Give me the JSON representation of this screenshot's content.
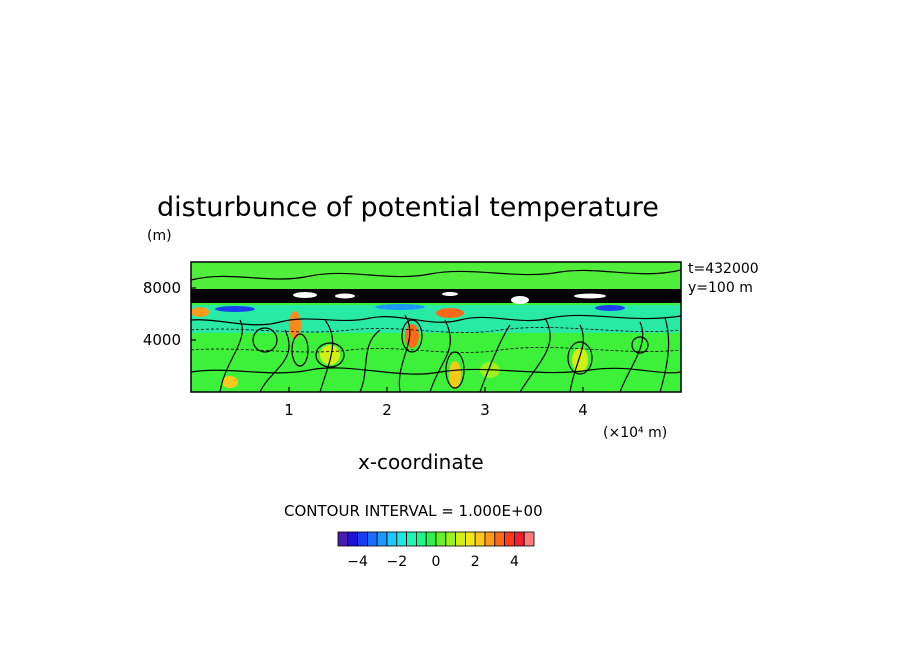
{
  "chart_data": {
    "type": "heatmap",
    "title": "disturbunce of potential temperature",
    "xlabel": "x-coordinate",
    "ylabel": "(m)",
    "x_unit_label": "(×10⁴ m)",
    "x_ticks": [
      1,
      2,
      3,
      4
    ],
    "y_ticks": [
      4000,
      8000
    ],
    "xlim": [
      0,
      5
    ],
    "ylim": [
      0,
      10000
    ],
    "annotations": [
      "t=432000",
      "y=100 m"
    ],
    "contour_interval_label": "CONTOUR INTERVAL = 1.000E+00",
    "colorbar": {
      "range": [
        -5,
        5
      ],
      "ticks": [
        -4,
        -2,
        0,
        2,
        4
      ],
      "colors": [
        "#4b1bb0",
        "#1f12d8",
        "#1a3bf0",
        "#1a6ef8",
        "#1c98ff",
        "#1ec8ff",
        "#1ee8e0",
        "#1ef5b5",
        "#1ef58a",
        "#30f050",
        "#6af028",
        "#a0f020",
        "#d2f018",
        "#f5e818",
        "#ffc81c",
        "#ff9a1a",
        "#ff6a18",
        "#ff3a18",
        "#f0202a",
        "#ff7a7a"
      ]
    },
    "field_description_colors": {
      "background": "#3df03a",
      "band_top": "#ffffff",
      "negative": "#20e6d8",
      "positive": "#ff8820"
    }
  }
}
